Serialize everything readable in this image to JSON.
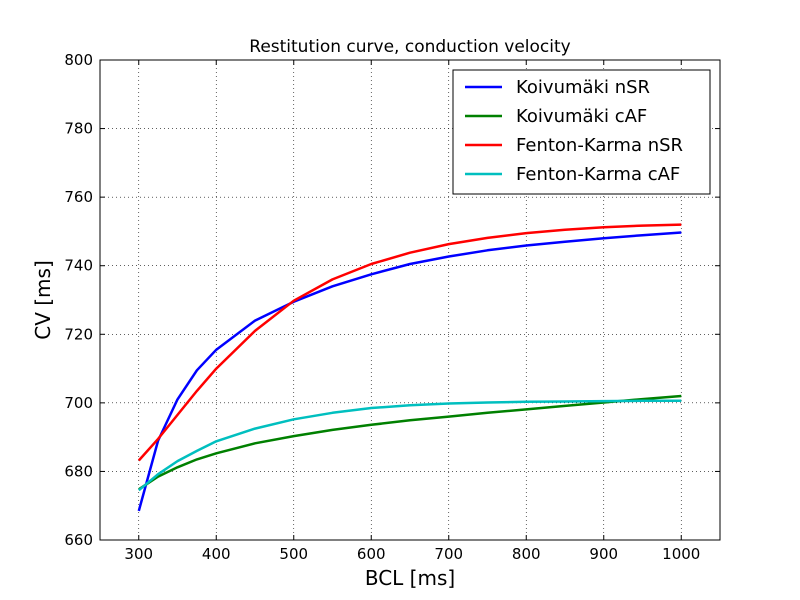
{
  "chart_data": {
    "type": "line",
    "title": "Restitution curve, conduction velocity",
    "xlabel": "BCL [ms]",
    "ylabel": "CV [ms]",
    "xlim": [
      250,
      1050
    ],
    "ylim": [
      660,
      800
    ],
    "xticks": [
      300,
      400,
      500,
      600,
      700,
      800,
      900,
      1000
    ],
    "yticks": [
      660,
      680,
      700,
      720,
      740,
      760,
      780,
      800
    ],
    "grid": true,
    "legend_position": "top-right",
    "x": [
      300,
      325,
      350,
      375,
      400,
      450,
      500,
      550,
      600,
      650,
      700,
      750,
      800,
      850,
      900,
      950,
      1000
    ],
    "series": [
      {
        "name": "Koivumäki nSR",
        "color": "#0000ff",
        "values": [
          668.5,
          689,
          701,
          709.5,
          715.5,
          724,
          729.5,
          734,
          737.5,
          740.5,
          742.7,
          744.5,
          745.9,
          747,
          748,
          748.9,
          749.7
        ]
      },
      {
        "name": "Koivumäki cAF",
        "color": "#008000",
        "values": [
          674.8,
          678.5,
          681.2,
          683.5,
          685.3,
          688.2,
          690.3,
          692.1,
          693.6,
          694.9,
          696,
          697.1,
          698.1,
          699.1,
          700.1,
          701.1,
          702
        ]
      },
      {
        "name": "Fenton-Karma nSR",
        "color": "#ff0000",
        "values": [
          683.2,
          689.5,
          696.5,
          703.5,
          710,
          721,
          729.8,
          736,
          740.5,
          743.8,
          746.3,
          748.1,
          749.5,
          750.5,
          751.2,
          751.7,
          752
        ]
      },
      {
        "name": "Fenton-Karma cAF",
        "color": "#00bfbf",
        "values": [
          674.5,
          679.2,
          683,
          686,
          688.8,
          692.5,
          695.2,
          697.1,
          698.5,
          699.3,
          699.8,
          700.1,
          700.3,
          700.4,
          700.5,
          700.6,
          700.6
        ]
      }
    ]
  }
}
